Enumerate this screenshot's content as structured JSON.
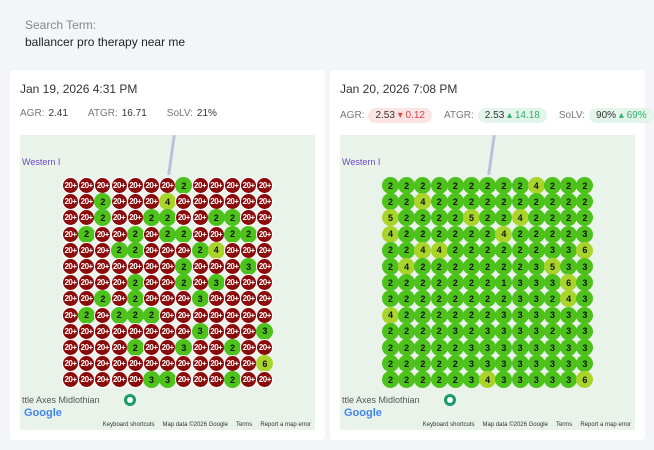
{
  "search": {
    "label": "Search Term:",
    "value": "ballancer pro therapy near me"
  },
  "colors": {
    "bad": "#8b0a0a",
    "good": "#4cc21b",
    "mid": "#a9d52a"
  },
  "map": {
    "place_label": "Western I",
    "town_label": "ttle Axes Midlothian",
    "google": "Google",
    "keyboard": "Keyboard shortcuts",
    "mapdata": "Map data ©2026 Google",
    "terms": "Terms",
    "report": "Report a map error"
  },
  "scans": [
    {
      "date": "Jan 19, 2026 4:31 PM",
      "agr_label": "AGR:",
      "agr": "2.41",
      "atgr_label": "ATGR:",
      "atgr": "16.71",
      "solv_label": "SoLV:",
      "solv": "21%",
      "grid": [
        [
          "20+",
          "20+",
          "20+",
          "20+",
          "20+",
          "20+",
          "20+",
          "2",
          "20+",
          "20+",
          "20+",
          "20+",
          "20+"
        ],
        [
          "20+",
          "20+",
          "2",
          "20+",
          "20+",
          "20+",
          "4",
          "20+",
          "20+",
          "20+",
          "20+",
          "20+",
          "20+"
        ],
        [
          "20+",
          "20+",
          "2",
          "20+",
          "20+",
          "2",
          "2",
          "20+",
          "20+",
          "2",
          "2",
          "20+",
          "20+"
        ],
        [
          "20+",
          "2",
          "20+",
          "20+",
          "2",
          "20+",
          "2",
          "2",
          "20+",
          "20+",
          "2",
          "2",
          "20+"
        ],
        [
          "20+",
          "20+",
          "20+",
          "2",
          "2",
          "20+",
          "20+",
          "20+",
          "2",
          "4",
          "20+",
          "20+",
          "20+"
        ],
        [
          "20+",
          "20+",
          "20+",
          "20+",
          "20+",
          "20+",
          "20+",
          "2",
          "20+",
          "20+",
          "20+",
          "3",
          "20+"
        ],
        [
          "20+",
          "20+",
          "20+",
          "20+",
          "2",
          "20+",
          "20+",
          "2",
          "20+",
          "3",
          "20+",
          "20+",
          "20+"
        ],
        [
          "20+",
          "20+",
          "2",
          "20+",
          "2",
          "20+",
          "20+",
          "20+",
          "3",
          "20+",
          "20+",
          "20+",
          "20+"
        ],
        [
          "20+",
          "2",
          "20+",
          "2",
          "2",
          "2",
          "20+",
          "20+",
          "20+",
          "20+",
          "20+",
          "20+",
          "20+"
        ],
        [
          "20+",
          "20+",
          "20+",
          "20+",
          "20+",
          "20+",
          "20+",
          "20+",
          "3",
          "20+",
          "20+",
          "20+",
          "3"
        ],
        [
          "20+",
          "20+",
          "20+",
          "20+",
          "2",
          "20+",
          "20+",
          "3",
          "20+",
          "20+",
          "2",
          "20+",
          "20+"
        ],
        [
          "20+",
          "20+",
          "20+",
          "20+",
          "20+",
          "20+",
          "20+",
          "20+",
          "20+",
          "20+",
          "20+",
          "20+",
          "6"
        ],
        [
          "20+",
          "20+",
          "20+",
          "20+",
          "20+",
          "3",
          "3",
          "20+",
          "20+",
          "20+",
          "2",
          "20+",
          "20+"
        ]
      ]
    },
    {
      "date": "Jan 20, 2026 7:08 PM",
      "agr_label": "AGR:",
      "agr": "2.53",
      "agr_delta": "▾ 0.12",
      "atgr_label": "ATGR:",
      "atgr": "2.53",
      "atgr_delta": "▴ 14.18",
      "solv_label": "SoLV:",
      "solv": "90%",
      "solv_delta": "▴ 69%",
      "grid": [
        [
          "2",
          "2",
          "2",
          "2",
          "2",
          "2",
          "2",
          "2",
          "2",
          "4",
          "2",
          "2",
          "2"
        ],
        [
          "2",
          "2",
          "4",
          "2",
          "2",
          "2",
          "2",
          "2",
          "2",
          "2",
          "2",
          "2",
          "2"
        ],
        [
          "5",
          "2",
          "2",
          "2",
          "2",
          "5",
          "2",
          "2",
          "4",
          "2",
          "2",
          "2",
          "2"
        ],
        [
          "4",
          "2",
          "2",
          "2",
          "2",
          "2",
          "2",
          "4",
          "2",
          "2",
          "2",
          "2",
          "3"
        ],
        [
          "2",
          "2",
          "4",
          "4",
          "2",
          "2",
          "2",
          "2",
          "2",
          "2",
          "3",
          "3",
          "6"
        ],
        [
          "2",
          "4",
          "2",
          "2",
          "2",
          "2",
          "2",
          "2",
          "2",
          "3",
          "5",
          "3",
          "3"
        ],
        [
          "2",
          "2",
          "2",
          "2",
          "2",
          "2",
          "2",
          "1",
          "3",
          "3",
          "3",
          "6",
          "3"
        ],
        [
          "2",
          "2",
          "2",
          "2",
          "2",
          "2",
          "2",
          "2",
          "3",
          "3",
          "2",
          "4",
          "3"
        ],
        [
          "4",
          "2",
          "2",
          "2",
          "2",
          "2",
          "2",
          "3",
          "3",
          "3",
          "3",
          "3",
          "3"
        ],
        [
          "2",
          "2",
          "2",
          "2",
          "3",
          "2",
          "3",
          "3",
          "3",
          "3",
          "2",
          "3",
          "3"
        ],
        [
          "2",
          "2",
          "2",
          "2",
          "2",
          "3",
          "3",
          "3",
          "3",
          "3",
          "3",
          "3",
          "3"
        ],
        [
          "2",
          "2",
          "2",
          "2",
          "2",
          "3",
          "3",
          "3",
          "3",
          "3",
          "3",
          "3",
          "3"
        ],
        [
          "2",
          "2",
          "2",
          "2",
          "2",
          "3",
          "4",
          "3",
          "3",
          "3",
          "3",
          "3",
          "6"
        ]
      ]
    }
  ]
}
